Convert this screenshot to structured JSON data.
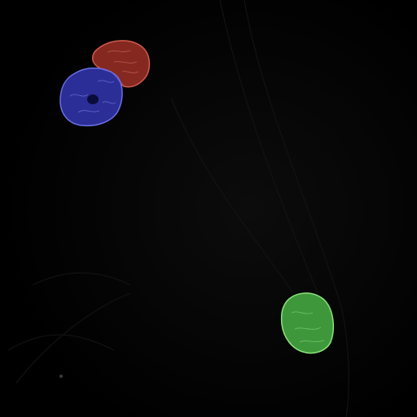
{
  "image": {
    "kind": "microscopy-segmentation-overlay",
    "background": "#000000",
    "object_count": 3
  },
  "masks": [
    {
      "label": "red-nucleus",
      "color": "#b8382c"
    },
    {
      "label": "blue-nucleus",
      "color": "#3a3ec8"
    },
    {
      "label": "green-nucleus",
      "color": "#4ec24a"
    }
  ],
  "colors": {
    "red": "#b8382c",
    "red_outline": "#d25a4c",
    "blue": "#3a3ec8",
    "blue_outline": "#6a70e6",
    "green": "#4ec24a",
    "green_outline": "#8ae27a",
    "faint_structure": "#1a1a1a"
  }
}
